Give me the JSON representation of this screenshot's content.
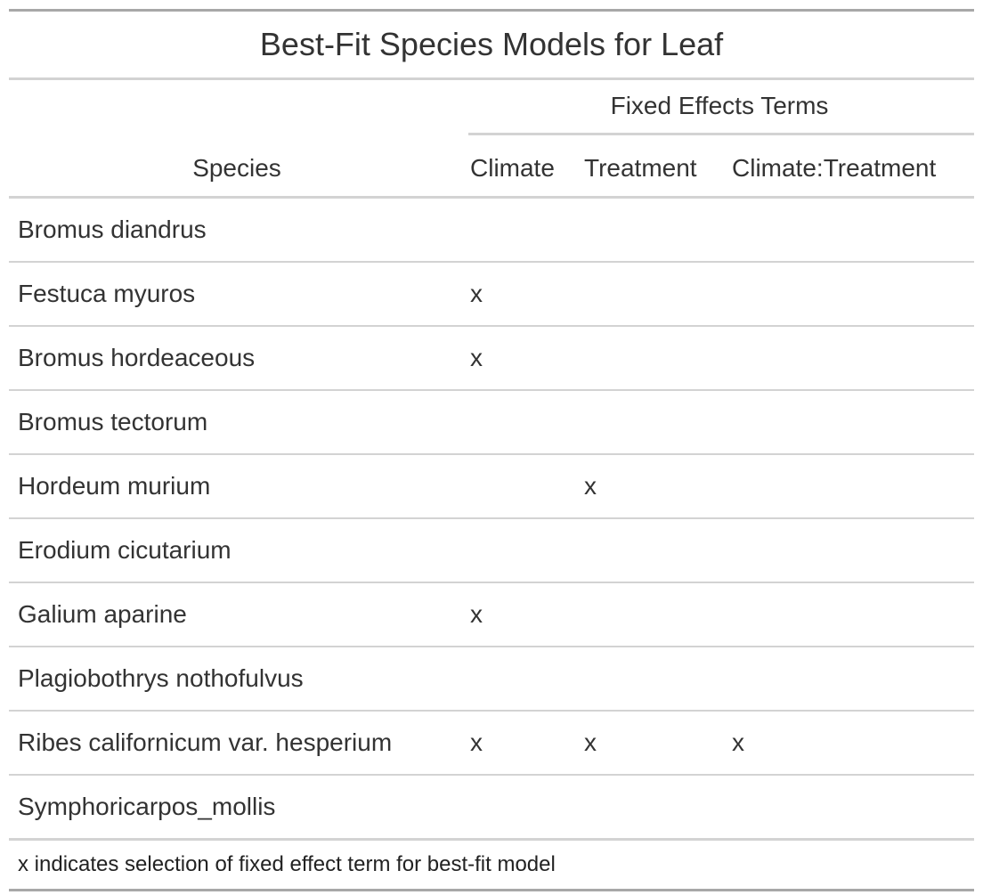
{
  "title": "Best-Fit Species Models for Leaf",
  "spanner_label": "Fixed Effects Terms",
  "columns": {
    "species": "Species",
    "climate": "Climate",
    "treatment": "Treatment",
    "interaction": "Climate:Treatment"
  },
  "rows": [
    {
      "species": "Bromus diandrus",
      "climate": "",
      "treatment": "",
      "interaction": ""
    },
    {
      "species": "Festuca myuros",
      "climate": "x",
      "treatment": "",
      "interaction": ""
    },
    {
      "species": "Bromus hordeaceous",
      "climate": "x",
      "treatment": "",
      "interaction": ""
    },
    {
      "species": "Bromus tectorum",
      "climate": "",
      "treatment": "",
      "interaction": ""
    },
    {
      "species": "Hordeum murium",
      "climate": "",
      "treatment": "x",
      "interaction": ""
    },
    {
      "species": "Erodium cicutarium",
      "climate": "",
      "treatment": "",
      "interaction": ""
    },
    {
      "species": "Galium aparine",
      "climate": "x",
      "treatment": "",
      "interaction": ""
    },
    {
      "species": "Plagiobothrys nothofulvus",
      "climate": "",
      "treatment": "",
      "interaction": ""
    },
    {
      "species": "Ribes californicum var. hesperium",
      "climate": "x",
      "treatment": "x",
      "interaction": "x"
    },
    {
      "species": "Symphoricarpos_mollis",
      "climate": "",
      "treatment": "",
      "interaction": ""
    }
  ],
  "footnote": "x indicates selection of fixed effect term for best-fit model"
}
